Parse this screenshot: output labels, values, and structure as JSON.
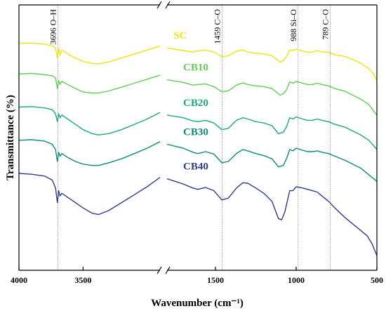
{
  "chart_data": {
    "type": "line",
    "xlabel": "Wavenumber (cm⁻¹)",
    "ylabel": "Transmittance (%)",
    "x_ticks": [
      "4000",
      "3500",
      "1500",
      "1000",
      "500"
    ],
    "x_axis_break": true,
    "left_range": [
      4000,
      2900
    ],
    "right_range": [
      1800,
      500
    ],
    "annotations": [
      {
        "label": "3696 O–H",
        "x": 3696
      },
      {
        "label": "1459 C–O",
        "x": 1459
      },
      {
        "label": "988 Si–O",
        "x": 988
      },
      {
        "label": "789 C–O",
        "x": 789
      }
    ],
    "series": [
      {
        "name": "SC",
        "color": "#f2e20a",
        "label_x": 1760,
        "left": [
          [
            4000,
            0.855
          ],
          [
            3900,
            0.856
          ],
          [
            3800,
            0.852
          ],
          [
            3740,
            0.846
          ],
          [
            3715,
            0.838
          ],
          [
            3700,
            0.8
          ],
          [
            3690,
            0.835
          ],
          [
            3680,
            0.81
          ],
          [
            3665,
            0.83
          ],
          [
            3620,
            0.815
          ],
          [
            3560,
            0.8
          ],
          [
            3500,
            0.787
          ],
          [
            3430,
            0.78
          ],
          [
            3380,
            0.778
          ],
          [
            3300,
            0.785
          ],
          [
            3200,
            0.8
          ],
          [
            3100,
            0.815
          ],
          [
            3000,
            0.83
          ],
          [
            2900,
            0.845
          ]
        ],
        "right": [
          [
            1800,
            0.838
          ],
          [
            1700,
            0.828
          ],
          [
            1640,
            0.822
          ],
          [
            1620,
            0.826
          ],
          [
            1560,
            0.83
          ],
          [
            1510,
            0.822
          ],
          [
            1460,
            0.805
          ],
          [
            1420,
            0.808
          ],
          [
            1370,
            0.826
          ],
          [
            1330,
            0.83
          ],
          [
            1300,
            0.823
          ],
          [
            1250,
            0.818
          ],
          [
            1200,
            0.815
          ],
          [
            1150,
            0.808
          ],
          [
            1100,
            0.785
          ],
          [
            1080,
            0.79
          ],
          [
            1060,
            0.805
          ],
          [
            1040,
            0.83
          ],
          [
            1020,
            0.828
          ],
          [
            1000,
            0.833
          ],
          [
            960,
            0.826
          ],
          [
            930,
            0.822
          ],
          [
            900,
            0.822
          ],
          [
            870,
            0.828
          ],
          [
            840,
            0.823
          ],
          [
            800,
            0.822
          ],
          [
            760,
            0.812
          ],
          [
            700,
            0.806
          ],
          [
            650,
            0.795
          ],
          [
            600,
            0.78
          ],
          [
            550,
            0.76
          ],
          [
            520,
            0.74
          ],
          [
            500,
            0.715
          ]
        ]
      },
      {
        "name": "CB10",
        "color": "#5ece55",
        "label_x": 1700,
        "left": [
          [
            4000,
            0.74
          ],
          [
            3900,
            0.742
          ],
          [
            3800,
            0.737
          ],
          [
            3740,
            0.733
          ],
          [
            3715,
            0.725
          ],
          [
            3700,
            0.685
          ],
          [
            3690,
            0.715
          ],
          [
            3680,
            0.7
          ],
          [
            3665,
            0.712
          ],
          [
            3620,
            0.7
          ],
          [
            3560,
            0.685
          ],
          [
            3500,
            0.672
          ],
          [
            3430,
            0.668
          ],
          [
            3380,
            0.668
          ],
          [
            3300,
            0.676
          ],
          [
            3200,
            0.69
          ],
          [
            3100,
            0.705
          ],
          [
            3000,
            0.72
          ],
          [
            2900,
            0.735
          ]
        ],
        "right": [
          [
            1800,
            0.718
          ],
          [
            1700,
            0.708
          ],
          [
            1640,
            0.698
          ],
          [
            1610,
            0.7
          ],
          [
            1560,
            0.702
          ],
          [
            1510,
            0.692
          ],
          [
            1460,
            0.673
          ],
          [
            1420,
            0.676
          ],
          [
            1370,
            0.698
          ],
          [
            1330,
            0.706
          ],
          [
            1300,
            0.7
          ],
          [
            1250,
            0.695
          ],
          [
            1200,
            0.692
          ],
          [
            1150,
            0.685
          ],
          [
            1100,
            0.66
          ],
          [
            1080,
            0.665
          ],
          [
            1060,
            0.68
          ],
          [
            1040,
            0.71
          ],
          [
            1020,
            0.705
          ],
          [
            1000,
            0.712
          ],
          [
            960,
            0.705
          ],
          [
            930,
            0.7
          ],
          [
            900,
            0.7
          ],
          [
            870,
            0.705
          ],
          [
            840,
            0.7
          ],
          [
            800,
            0.695
          ],
          [
            760,
            0.685
          ],
          [
            700,
            0.675
          ],
          [
            650,
            0.66
          ],
          [
            600,
            0.645
          ],
          [
            550,
            0.625
          ],
          [
            520,
            0.6
          ],
          [
            500,
            0.585
          ]
        ]
      },
      {
        "name": "CB20",
        "color": "#1aa882",
        "label_x": 1700,
        "left": [
          [
            4000,
            0.615
          ],
          [
            3900,
            0.617
          ],
          [
            3800,
            0.612
          ],
          [
            3740,
            0.605
          ],
          [
            3715,
            0.59
          ],
          [
            3700,
            0.56
          ],
          [
            3690,
            0.59
          ],
          [
            3680,
            0.575
          ],
          [
            3665,
            0.585
          ],
          [
            3620,
            0.57
          ],
          [
            3560,
            0.55
          ],
          [
            3500,
            0.53
          ],
          [
            3430,
            0.515
          ],
          [
            3380,
            0.51
          ],
          [
            3300,
            0.515
          ],
          [
            3200,
            0.53
          ],
          [
            3100,
            0.55
          ],
          [
            3000,
            0.57
          ],
          [
            2900,
            0.595
          ]
        ],
        "right": [
          [
            1800,
            0.585
          ],
          [
            1700,
            0.575
          ],
          [
            1640,
            0.563
          ],
          [
            1610,
            0.56
          ],
          [
            1560,
            0.565
          ],
          [
            1510,
            0.555
          ],
          [
            1460,
            0.53
          ],
          [
            1420,
            0.535
          ],
          [
            1370,
            0.565
          ],
          [
            1330,
            0.575
          ],
          [
            1300,
            0.57
          ],
          [
            1250,
            0.56
          ],
          [
            1200,
            0.555
          ],
          [
            1150,
            0.545
          ],
          [
            1110,
            0.515
          ],
          [
            1080,
            0.52
          ],
          [
            1060,
            0.54
          ],
          [
            1040,
            0.575
          ],
          [
            1020,
            0.57
          ],
          [
            1000,
            0.578
          ],
          [
            960,
            0.57
          ],
          [
            930,
            0.565
          ],
          [
            900,
            0.565
          ],
          [
            870,
            0.57
          ],
          [
            840,
            0.565
          ],
          [
            800,
            0.56
          ],
          [
            760,
            0.55
          ],
          [
            700,
            0.54
          ],
          [
            650,
            0.525
          ],
          [
            600,
            0.51
          ],
          [
            550,
            0.49
          ],
          [
            520,
            0.47
          ],
          [
            500,
            0.455
          ]
        ]
      },
      {
        "name": "CB30",
        "color": "#0b8a7a",
        "label_x": 1700,
        "left": [
          [
            4000,
            0.49
          ],
          [
            3900,
            0.492
          ],
          [
            3800,
            0.487
          ],
          [
            3740,
            0.475
          ],
          [
            3715,
            0.455
          ],
          [
            3700,
            0.41
          ],
          [
            3690,
            0.445
          ],
          [
            3680,
            0.43
          ],
          [
            3665,
            0.44
          ],
          [
            3620,
            0.425
          ],
          [
            3560,
            0.41
          ],
          [
            3500,
            0.4
          ],
          [
            3430,
            0.395
          ],
          [
            3380,
            0.395
          ],
          [
            3300,
            0.405
          ],
          [
            3200,
            0.42
          ],
          [
            3100,
            0.44
          ],
          [
            3000,
            0.46
          ],
          [
            2900,
            0.485
          ]
        ],
        "right": [
          [
            1800,
            0.475
          ],
          [
            1700,
            0.46
          ],
          [
            1640,
            0.445
          ],
          [
            1610,
            0.44
          ],
          [
            1560,
            0.447
          ],
          [
            1510,
            0.438
          ],
          [
            1460,
            0.405
          ],
          [
            1420,
            0.41
          ],
          [
            1370,
            0.44
          ],
          [
            1330,
            0.455
          ],
          [
            1300,
            0.45
          ],
          [
            1250,
            0.44
          ],
          [
            1200,
            0.432
          ],
          [
            1150,
            0.42
          ],
          [
            1110,
            0.39
          ],
          [
            1080,
            0.395
          ],
          [
            1060,
            0.42
          ],
          [
            1040,
            0.455
          ],
          [
            1020,
            0.45
          ],
          [
            1000,
            0.46
          ],
          [
            960,
            0.452
          ],
          [
            930,
            0.447
          ],
          [
            900,
            0.447
          ],
          [
            870,
            0.45
          ],
          [
            840,
            0.445
          ],
          [
            800,
            0.44
          ],
          [
            760,
            0.43
          ],
          [
            700,
            0.415
          ],
          [
            650,
            0.4
          ],
          [
            600,
            0.385
          ],
          [
            550,
            0.36
          ],
          [
            520,
            0.345
          ],
          [
            500,
            0.335
          ]
        ]
      },
      {
        "name": "CB40",
        "color": "#2e3c8c",
        "label_x": 1700,
        "left": [
          [
            4000,
            0.365
          ],
          [
            3900,
            0.362
          ],
          [
            3800,
            0.355
          ],
          [
            3740,
            0.34
          ],
          [
            3715,
            0.31
          ],
          [
            3700,
            0.255
          ],
          [
            3690,
            0.3
          ],
          [
            3680,
            0.28
          ],
          [
            3665,
            0.29
          ],
          [
            3620,
            0.275
          ],
          [
            3560,
            0.255
          ],
          [
            3500,
            0.235
          ],
          [
            3430,
            0.215
          ],
          [
            3380,
            0.21
          ],
          [
            3300,
            0.225
          ],
          [
            3200,
            0.255
          ],
          [
            3100,
            0.285
          ],
          [
            3000,
            0.315
          ],
          [
            2900,
            0.35
          ]
        ],
        "right": [
          [
            1800,
            0.345
          ],
          [
            1700,
            0.325
          ],
          [
            1640,
            0.31
          ],
          [
            1610,
            0.305
          ],
          [
            1560,
            0.312
          ],
          [
            1510,
            0.3
          ],
          [
            1460,
            0.265
          ],
          [
            1420,
            0.272
          ],
          [
            1370,
            0.31
          ],
          [
            1330,
            0.33
          ],
          [
            1300,
            0.328
          ],
          [
            1250,
            0.31
          ],
          [
            1200,
            0.29
          ],
          [
            1150,
            0.26
          ],
          [
            1110,
            0.195
          ],
          [
            1090,
            0.19
          ],
          [
            1070,
            0.22
          ],
          [
            1040,
            0.3
          ],
          [
            1020,
            0.3
          ],
          [
            1000,
            0.315
          ],
          [
            960,
            0.31
          ],
          [
            930,
            0.305
          ],
          [
            900,
            0.3
          ],
          [
            870,
            0.295
          ],
          [
            840,
            0.28
          ],
          [
            800,
            0.26
          ],
          [
            760,
            0.235
          ],
          [
            700,
            0.2
          ],
          [
            650,
            0.175
          ],
          [
            600,
            0.15
          ],
          [
            560,
            0.13
          ],
          [
            530,
            0.1
          ],
          [
            510,
            0.07
          ],
          [
            500,
            0.055
          ]
        ]
      }
    ]
  }
}
